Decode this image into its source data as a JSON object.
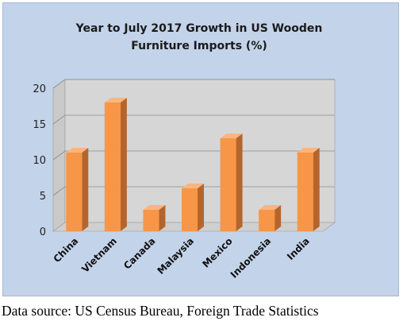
{
  "chart_data": {
    "type": "bar",
    "title_lines": [
      "Year to July 2017 Growth in US Wooden",
      "Furniture Imports (%)"
    ],
    "categories": [
      "China",
      "Vietnam",
      "Canada",
      "Malaysia",
      "Mexico",
      "Indonesia",
      "India"
    ],
    "values": [
      11,
      18,
      3,
      6,
      13,
      3,
      11
    ],
    "ylim": [
      0,
      20
    ],
    "yticks": [
      "0",
      "5",
      "10",
      "15",
      "20"
    ],
    "grid": true,
    "legend": "none",
    "colors": {
      "bar_front": "#f79646",
      "bar_side": "#b5652b",
      "bar_top": "#f9b580",
      "plot_back": "#d6d6d6",
      "plot_floor": "#cfcfcf",
      "frame_bg": "#c3d3ea"
    }
  },
  "source": "Data source:  US Census Bureau, Foreign Trade Statistics"
}
